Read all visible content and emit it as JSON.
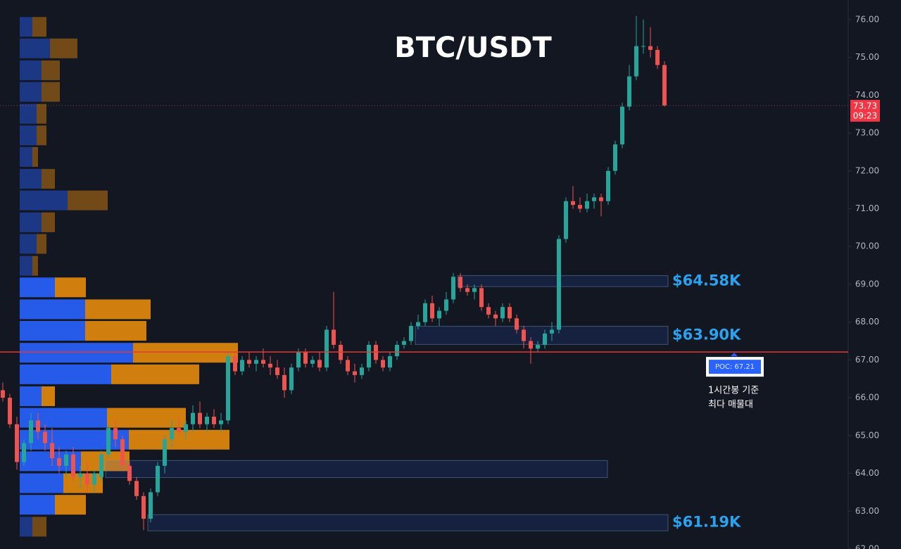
{
  "chart_data": {
    "type": "candlestick",
    "title": "BTC/USDT",
    "up_color": "#26a69a",
    "down_color": "#ef5350",
    "xlim": [
      -0.4,
      120.1
    ],
    "ylim": [
      62.0,
      76.52
    ],
    "yticks": [
      {
        "value": 62,
        "label": "62.00"
      },
      {
        "value": 63,
        "label": "63.00"
      },
      {
        "value": 64,
        "label": "64.00"
      },
      {
        "value": 65,
        "label": "65.00"
      },
      {
        "value": 66,
        "label": "66.00"
      },
      {
        "value": 67,
        "label": "67.00"
      },
      {
        "value": 68,
        "label": "68.00"
      },
      {
        "value": 69,
        "label": "69.00"
      },
      {
        "value": 70,
        "label": "70.00"
      },
      {
        "value": 71,
        "label": "71.00"
      },
      {
        "value": 72,
        "label": "72.00"
      },
      {
        "value": 73,
        "label": "73.00"
      },
      {
        "value": 74,
        "label": "74.00"
      },
      {
        "value": 75,
        "label": "75.00"
      },
      {
        "value": 76,
        "label": "76.00"
      }
    ],
    "candles": [
      [
        66.2,
        66.4,
        65.9,
        66.0
      ],
      [
        66.0,
        66.1,
        65.2,
        65.3
      ],
      [
        65.3,
        65.5,
        64.1,
        64.3
      ],
      [
        64.3,
        64.9,
        64.2,
        64.8
      ],
      [
        64.8,
        65.6,
        64.6,
        65.4
      ],
      [
        65.4,
        65.6,
        64.9,
        65.1
      ],
      [
        65.1,
        65.3,
        64.6,
        64.8
      ],
      [
        64.8,
        65.2,
        64.2,
        64.4
      ],
      [
        64.4,
        64.7,
        64.0,
        64.2
      ],
      [
        64.2,
        64.6,
        63.9,
        64.5
      ],
      [
        64.5,
        64.7,
        63.8,
        63.9
      ],
      [
        63.9,
        64.2,
        63.6,
        64.0
      ],
      [
        64.0,
        64.3,
        63.5,
        63.7
      ],
      [
        63.7,
        64.1,
        63.5,
        64.0
      ],
      [
        63.9,
        64.6,
        63.8,
        64.5
      ],
      [
        64.5,
        65.3,
        64.4,
        65.2
      ],
      [
        65.2,
        65.4,
        64.7,
        64.9
      ],
      [
        64.9,
        65.0,
        64.1,
        64.2
      ],
      [
        64.2,
        64.3,
        63.7,
        63.8
      ],
      [
        63.8,
        63.9,
        63.3,
        63.4
      ],
      [
        63.4,
        63.5,
        62.5,
        62.8
      ],
      [
        62.8,
        63.6,
        62.7,
        63.5
      ],
      [
        63.5,
        64.3,
        63.4,
        64.2
      ],
      [
        64.2,
        65.0,
        64.0,
        64.9
      ],
      [
        64.9,
        65.4,
        64.7,
        65.2
      ],
      [
        65.2,
        65.5,
        65.0,
        65.1
      ],
      [
        65.1,
        65.4,
        64.9,
        65.3
      ],
      [
        65.3,
        65.8,
        65.1,
        65.6
      ],
      [
        65.6,
        65.9,
        65.2,
        65.3
      ],
      [
        65.3,
        65.6,
        65.1,
        65.5
      ],
      [
        65.5,
        65.7,
        65.2,
        65.3
      ],
      [
        65.3,
        65.6,
        65.1,
        65.4
      ],
      [
        65.4,
        67.2,
        65.3,
        67.1
      ],
      [
        67.1,
        67.2,
        66.6,
        66.7
      ],
      [
        66.7,
        67.1,
        66.6,
        67.0
      ],
      [
        67.0,
        67.2,
        66.8,
        66.9
      ],
      [
        66.9,
        67.1,
        66.7,
        67.0
      ],
      [
        67.0,
        67.3,
        66.8,
        66.9
      ],
      [
        66.9,
        67.1,
        66.6,
        66.8
      ],
      [
        66.8,
        67.0,
        66.5,
        66.6
      ],
      [
        66.6,
        66.8,
        66.0,
        66.2
      ],
      [
        66.2,
        66.9,
        66.1,
        66.8
      ],
      [
        66.8,
        67.3,
        66.7,
        67.2
      ],
      [
        67.2,
        67.3,
        66.8,
        66.9
      ],
      [
        66.9,
        67.1,
        66.8,
        67.0
      ],
      [
        67.0,
        67.2,
        66.7,
        66.8
      ],
      [
        66.8,
        67.9,
        66.7,
        67.8
      ],
      [
        67.8,
        68.8,
        67.3,
        67.4
      ],
      [
        67.4,
        67.5,
        66.9,
        67.0
      ],
      [
        67.0,
        67.1,
        66.6,
        66.7
      ],
      [
        66.7,
        66.9,
        66.4,
        66.6
      ],
      [
        66.6,
        66.9,
        66.5,
        66.8
      ],
      [
        66.8,
        67.5,
        66.7,
        67.4
      ],
      [
        67.4,
        67.5,
        66.9,
        67.0
      ],
      [
        67.0,
        67.1,
        66.7,
        66.8
      ],
      [
        66.8,
        67.2,
        66.7,
        67.1
      ],
      [
        67.1,
        67.5,
        67.0,
        67.4
      ],
      [
        67.4,
        67.6,
        67.3,
        67.5
      ],
      [
        67.5,
        68.0,
        67.4,
        67.9
      ],
      [
        67.9,
        68.2,
        67.8,
        68.0
      ],
      [
        68.0,
        68.6,
        67.9,
        68.5
      ],
      [
        68.5,
        68.7,
        68.0,
        68.1
      ],
      [
        68.1,
        68.4,
        67.9,
        68.3
      ],
      [
        68.3,
        68.8,
        68.2,
        68.6
      ],
      [
        68.6,
        69.3,
        68.5,
        69.2
      ],
      [
        69.2,
        69.3,
        68.8,
        68.9
      ],
      [
        68.9,
        69.0,
        68.7,
        68.8
      ],
      [
        68.8,
        69.0,
        68.6,
        68.9
      ],
      [
        68.9,
        69.0,
        68.3,
        68.4
      ],
      [
        68.4,
        68.5,
        68.1,
        68.2
      ],
      [
        68.2,
        68.3,
        67.9,
        68.1
      ],
      [
        68.1,
        68.5,
        68.0,
        68.4
      ],
      [
        68.4,
        68.5,
        68.0,
        68.1
      ],
      [
        68.1,
        68.2,
        67.7,
        67.8
      ],
      [
        67.8,
        67.9,
        67.3,
        67.5
      ],
      [
        67.5,
        67.6,
        66.9,
        67.3
      ],
      [
        67.3,
        67.5,
        67.2,
        67.4
      ],
      [
        67.4,
        67.8,
        67.3,
        67.7
      ],
      [
        67.7,
        68.0,
        67.5,
        67.8
      ],
      [
        67.8,
        70.3,
        67.7,
        70.2
      ],
      [
        70.2,
        71.3,
        70.1,
        71.2
      ],
      [
        71.2,
        71.6,
        71.0,
        71.1
      ],
      [
        71.1,
        71.3,
        70.9,
        71.0
      ],
      [
        71.0,
        71.4,
        70.9,
        71.2
      ],
      [
        71.2,
        71.4,
        71.0,
        71.3
      ],
      [
        71.3,
        71.4,
        70.8,
        71.2
      ],
      [
        71.2,
        72.1,
        71.1,
        72.0
      ],
      [
        72.0,
        72.8,
        71.9,
        72.7
      ],
      [
        72.7,
        73.8,
        72.6,
        73.7
      ],
      [
        73.7,
        74.8,
        73.6,
        74.5
      ],
      [
        74.5,
        76.1,
        74.4,
        75.3
      ],
      [
        75.3,
        76.0,
        75.1,
        75.3
      ],
      [
        75.3,
        75.8,
        75.0,
        75.2
      ],
      [
        75.2,
        75.3,
        74.7,
        74.8
      ],
      [
        74.8,
        74.9,
        73.7,
        73.73
      ]
    ],
    "volume_profile": {
      "levels": [
        75.81,
        75.24,
        74.66,
        74.09,
        73.51,
        72.94,
        72.37,
        71.79,
        71.22,
        70.64,
        70.07,
        69.49,
        68.92,
        68.34,
        67.77,
        67.19,
        66.62,
        66.04,
        65.47,
        64.89,
        64.32,
        63.74,
        63.17,
        62.59
      ],
      "buy": [
        18,
        43,
        31,
        31,
        24,
        24,
        18,
        31,
        68,
        31,
        24,
        18,
        50,
        93,
        93,
        161,
        130,
        31,
        124,
        155,
        87,
        62,
        50,
        18
      ],
      "sell": [
        20,
        39,
        26,
        26,
        14,
        14,
        8,
        19,
        57,
        19,
        14,
        8,
        44,
        93,
        87,
        149,
        125,
        19,
        112,
        143,
        69,
        56,
        44,
        20
      ],
      "value_area": [
        12,
        22
      ],
      "buy_color": "#2962ff",
      "sell_color": "#e68a0c"
    },
    "zones": [
      {
        "top": 69.23,
        "bottom": 68.94,
        "start": 64.6,
        "end": 94.5,
        "label": "$64.58K"
      },
      {
        "top": 67.89,
        "bottom": 67.41,
        "start": 58.6,
        "end": 94.5,
        "label": "$63.90K"
      },
      {
        "top": 64.34,
        "bottom": 63.89,
        "start": 14.6,
        "end": 85.9
      },
      {
        "top": 62.91,
        "bottom": 62.48,
        "start": 20.6,
        "end": 94.5,
        "label": "$61.19K"
      }
    ],
    "poc": {
      "value": 67.21,
      "label": "POC: 67.21"
    },
    "last_price": {
      "value": 73.73,
      "countdown": "09:23"
    },
    "annotation": [
      "1시간봉 기준",
      "최다 매물대"
    ]
  }
}
